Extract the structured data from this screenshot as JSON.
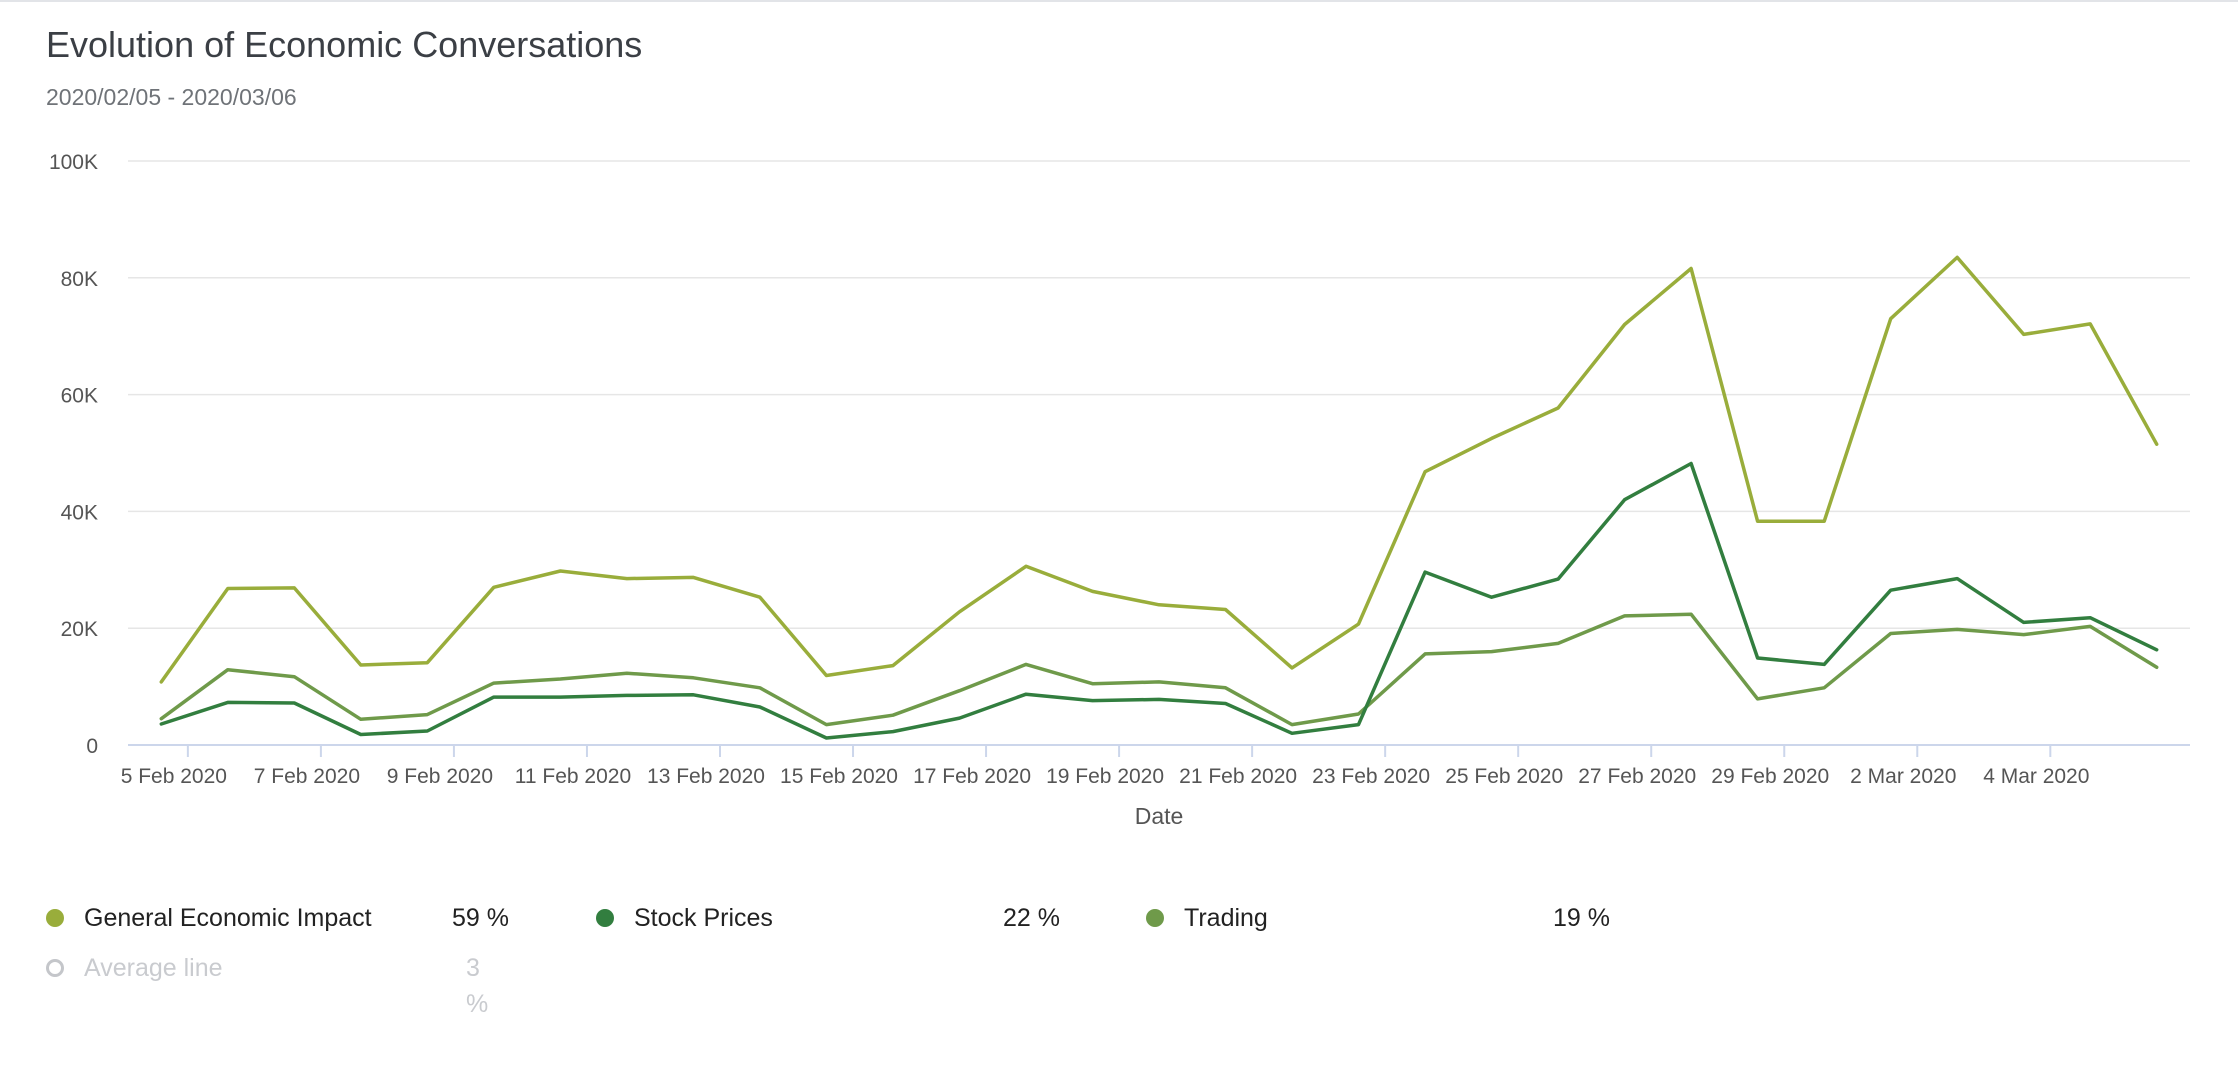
{
  "title": "Evolution of Economic Conversations",
  "subtitle": "2020/02/05 - 2020/03/06",
  "colors": {
    "general": "#99ad3b",
    "stock": "#327e3f",
    "trading": "#6f9a4a",
    "grid": "#e6e6e6",
    "axis": "#ccd6eb",
    "muted": "#c4c6ca"
  },
  "chart_data": {
    "type": "line",
    "xlabel": "Date",
    "ylabel": "",
    "ylim": [
      0,
      100000
    ],
    "y_ticks": [
      0,
      20000,
      40000,
      60000,
      80000,
      100000
    ],
    "y_tick_labels": [
      "0",
      "20K",
      "40K",
      "60K",
      "80K",
      "100K"
    ],
    "x": [
      "2020-02-05",
      "2020-02-06",
      "2020-02-07",
      "2020-02-08",
      "2020-02-09",
      "2020-02-10",
      "2020-02-11",
      "2020-02-12",
      "2020-02-13",
      "2020-02-14",
      "2020-02-15",
      "2020-02-16",
      "2020-02-17",
      "2020-02-18",
      "2020-02-19",
      "2020-02-20",
      "2020-02-21",
      "2020-02-22",
      "2020-02-23",
      "2020-02-24",
      "2020-02-25",
      "2020-02-26",
      "2020-02-27",
      "2020-02-28",
      "2020-02-29",
      "2020-03-01",
      "2020-03-02",
      "2020-03-03",
      "2020-03-04",
      "2020-03-05",
      "2020-03-06"
    ],
    "x_tick_labels": [
      "5 Feb 2020",
      "7 Feb 2020",
      "9 Feb 2020",
      "11 Feb 2020",
      "13 Feb 2020",
      "15 Feb 2020",
      "17 Feb 2020",
      "19 Feb 2020",
      "21 Feb 2020",
      "23 Feb 2020",
      "25 Feb 2020",
      "27 Feb 2020",
      "29 Feb 2020",
      "2 Mar 2020",
      "4 Mar 2020"
    ],
    "x_tick_label_positions": [
      0.4,
      2.4,
      4.4,
      6.4,
      8.4,
      10.4,
      12.4,
      14.4,
      16.4,
      18.4,
      20.4,
      22.4,
      24.4,
      26.4,
      28.4
    ],
    "x_tick_marks": [
      0.4,
      2.4,
      4.4,
      6.4,
      8.4,
      10.4,
      12.4,
      14.4,
      16.4,
      18.4,
      20.4,
      22.4,
      24.4,
      26.4,
      28.4
    ],
    "grid": true,
    "legend_position": "bottom-left",
    "series": [
      {
        "name": "General Economic Impact",
        "color": "#99ad3b",
        "percent": "59 %",
        "values": [
          10800,
          26800,
          26900,
          13700,
          14100,
          27000,
          29800,
          28500,
          28700,
          25300,
          11900,
          13600,
          22800,
          30600,
          26300,
          24000,
          23200,
          13200,
          20700,
          46800,
          52500,
          57700,
          72000,
          81600,
          38300,
          38300,
          73000,
          83500,
          70300,
          72100,
          51500
        ]
      },
      {
        "name": "Stock Prices",
        "color": "#327e3f",
        "percent": "22 %",
        "values": [
          3600,
          7300,
          7200,
          1800,
          2400,
          8200,
          8200,
          8500,
          8600,
          6500,
          1200,
          2300,
          4600,
          8700,
          7600,
          7800,
          7100,
          2000,
          3500,
          29600,
          25300,
          28400,
          42000,
          48200,
          14900,
          13800,
          26500,
          28500,
          21000,
          21800,
          16300
        ]
      },
      {
        "name": "Trading",
        "color": "#6f9a4a",
        "percent": "19 %",
        "values": [
          4500,
          12900,
          11700,
          4400,
          5200,
          10600,
          11300,
          12300,
          11500,
          9800,
          3500,
          5100,
          9300,
          13800,
          10500,
          10800,
          9800,
          3500,
          5300,
          15600,
          16000,
          17400,
          22100,
          22400,
          7900,
          9800,
          19100,
          19800,
          18900,
          20300,
          13300
        ]
      }
    ],
    "average_line": {
      "name": "Average line",
      "percent": "3 %",
      "enabled": false
    }
  },
  "legend": {
    "items": [
      {
        "label": "General Economic Impact",
        "percent": "59 %"
      },
      {
        "label": "Stock Prices",
        "percent": "22 %"
      },
      {
        "label": "Trading",
        "percent": "19 %"
      },
      {
        "label": "Average line",
        "percent": "3 %"
      }
    ]
  }
}
